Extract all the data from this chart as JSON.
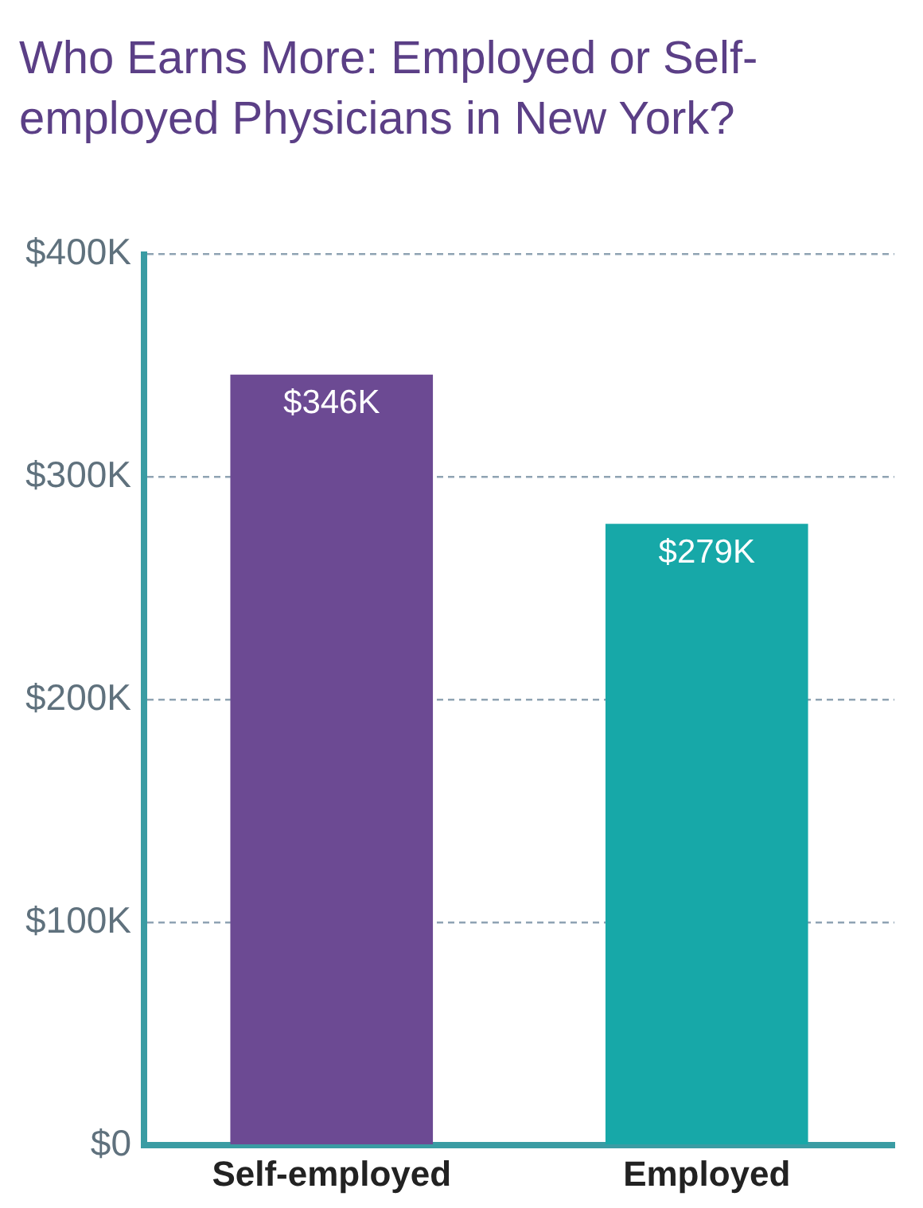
{
  "chart_data": {
    "type": "bar",
    "title": "Who Earns More: Employed or Self-employed Physicians in New York?",
    "categories": [
      "Self-employed",
      "Employed"
    ],
    "values": [
      346000,
      279000
    ],
    "colors": [
      "#6c4a93",
      "#17a8a8"
    ],
    "value_labels": [
      "$346K",
      "$279K"
    ],
    "ylim": [
      0,
      400000
    ],
    "yticks": [
      {
        "value": 0,
        "label": "$0"
      },
      {
        "value": 100000,
        "label": "$100K"
      },
      {
        "value": 200000,
        "label": "$200K"
      },
      {
        "value": 300000,
        "label": "$300K"
      },
      {
        "value": 400000,
        "label": "$400K"
      }
    ],
    "grid": "y",
    "legend": false
  }
}
